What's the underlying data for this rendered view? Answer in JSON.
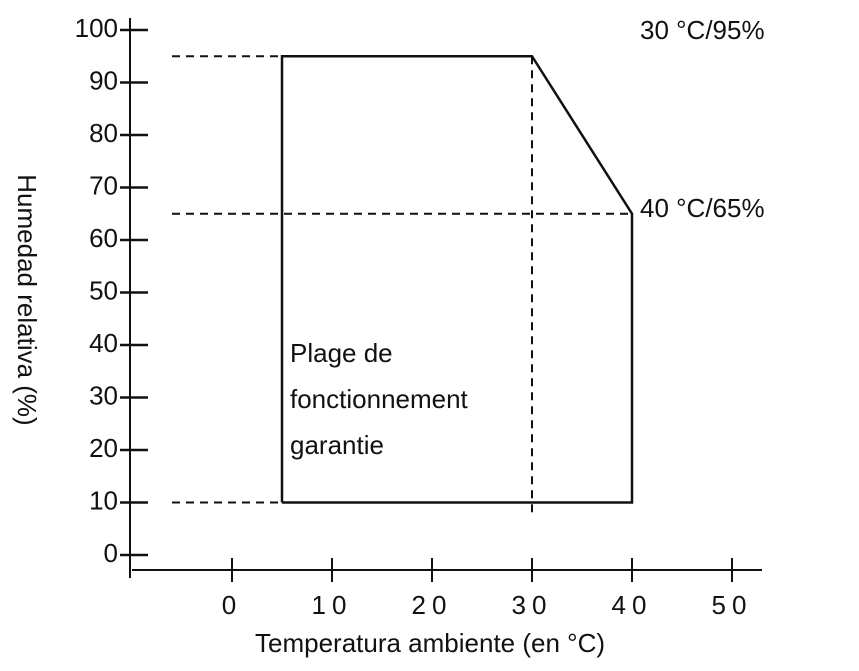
{
  "chart_data": {
    "type": "line",
    "x_label": "Temperatura ambiente (en °C)",
    "y_label": "Humedad relativa (%)",
    "series": [
      {
        "x": [
          5,
          5,
          30,
          40,
          40,
          5
        ],
        "values": [
          10,
          95,
          95,
          65,
          10,
          10
        ],
        "color": "#111111"
      }
    ],
    "annotations": [
      "30 °C/95%",
      "40 °C/65%"
    ],
    "region_label": [
      "Plage de",
      "fonctionnement",
      "garantie"
    ],
    "xlim": [
      -10,
      53
    ],
    "xticks": [
      0,
      10,
      20,
      30,
      40,
      50
    ],
    "ylim": [
      0,
      100
    ],
    "yticks": [
      0,
      10,
      20,
      30,
      40,
      50,
      60,
      70,
      80,
      90,
      100
    ]
  }
}
